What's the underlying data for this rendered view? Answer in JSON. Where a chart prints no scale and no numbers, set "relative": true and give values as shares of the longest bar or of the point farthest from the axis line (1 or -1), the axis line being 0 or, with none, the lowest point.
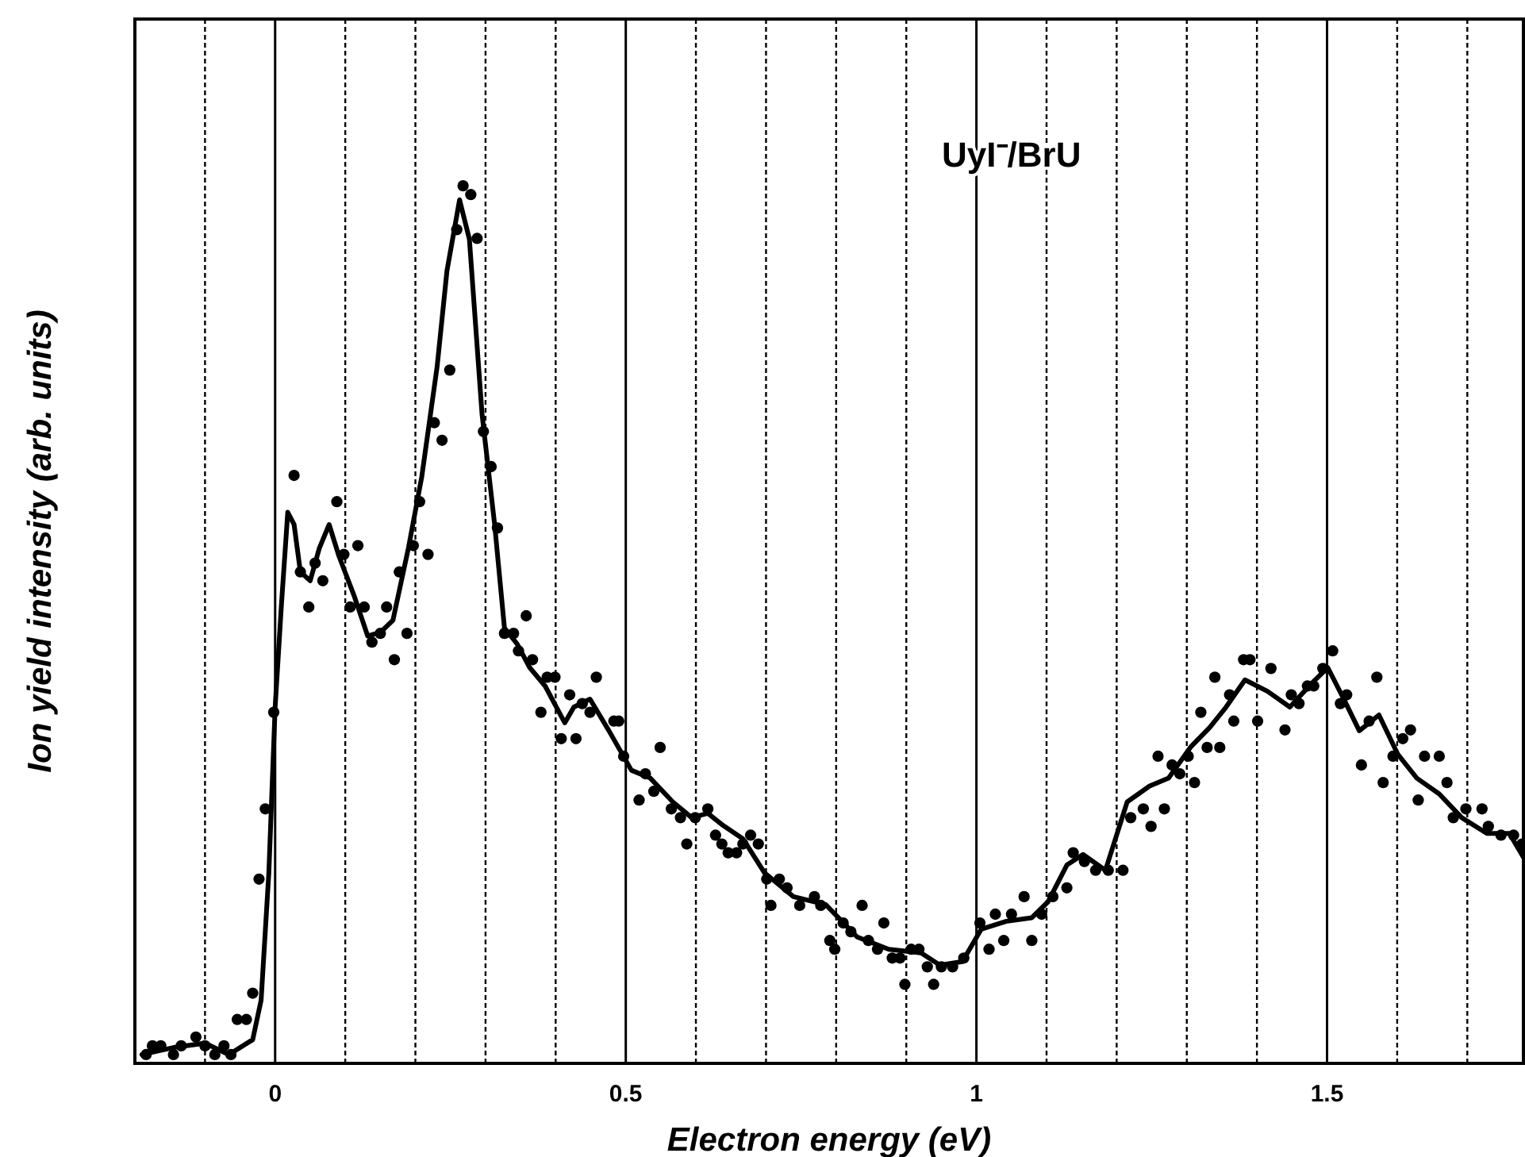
{
  "chart_data": {
    "type": "scatter",
    "title": "UyI⁻/BrU",
    "xlabel": "Electron energy (eV)",
    "ylabel": "Ion yield intensity (arb. units)",
    "relative": true,
    "xlim": [
      -0.2,
      1.78
    ],
    "xticks": [
      {
        "value": -0.1,
        "label": null
      },
      0,
      {
        "value": 0.1,
        "label": null
      },
      {
        "value": 0.2,
        "label": null
      },
      {
        "value": 0.3,
        "label": null
      },
      {
        "value": 0.4,
        "label": null
      },
      {
        "value": 0.5,
        "label": "0.5"
      },
      {
        "value": 0.6,
        "label": null
      },
      {
        "value": 0.7,
        "label": null
      },
      {
        "value": 0.8,
        "label": null
      },
      {
        "value": 0.9,
        "label": null
      },
      1,
      {
        "value": 1.1,
        "label": null
      },
      {
        "value": 1.2,
        "label": null
      },
      {
        "value": 1.3,
        "label": null
      },
      {
        "value": 1.4,
        "label": null
      },
      1.5,
      {
        "value": 1.6,
        "label": null
      },
      {
        "value": 1.7,
        "label": null
      }
    ],
    "grid": "x",
    "series": [
      {
        "color": "#000000",
        "marker": "circle",
        "x": [
          -0.184,
          -0.175,
          -0.163,
          -0.145,
          -0.134,
          -0.113,
          -0.1,
          -0.086,
          -0.073,
          -0.063,
          -0.054,
          -0.041,
          -0.032,
          -0.023,
          -0.014,
          -0.002,
          0.027,
          0.036,
          0.048,
          0.057,
          0.068,
          0.088,
          0.098,
          0.107,
          0.118,
          0.127,
          0.138,
          0.15,
          0.159,
          0.17,
          0.177,
          0.188,
          0.197,
          0.206,
          0.218,
          0.227,
          0.238,
          0.249,
          0.259,
          0.268,
          0.279,
          0.288,
          0.297,
          0.308,
          0.317,
          0.327,
          0.34,
          0.347,
          0.358,
          0.367,
          0.379,
          0.388,
          0.399,
          0.408,
          0.42,
          0.429,
          0.438,
          0.449,
          0.458,
          0.483,
          0.49,
          0.497,
          0.519,
          0.528,
          0.54,
          0.549,
          0.565,
          0.578,
          0.587,
          0.599,
          0.617,
          0.628,
          0.637,
          0.646,
          0.658,
          0.667,
          0.678,
          0.689,
          0.701,
          0.707,
          0.719,
          0.73,
          0.748,
          0.769,
          0.778,
          0.791,
          0.798,
          0.81,
          0.821,
          0.837,
          0.846,
          0.859,
          0.868,
          0.88,
          0.891,
          0.898,
          0.907,
          0.918,
          0.93,
          0.939,
          0.95,
          0.966,
          0.982,
          1.005,
          1.018,
          1.027,
          1.039,
          1.05,
          1.068,
          1.079,
          1.093,
          1.109,
          1.129,
          1.138,
          1.154,
          1.17,
          1.188,
          1.209,
          1.22,
          1.238,
          1.249,
          1.259,
          1.268,
          1.279,
          1.29,
          1.302,
          1.311,
          1.32,
          1.329,
          1.34,
          1.347,
          1.361,
          1.367,
          1.381,
          1.39,
          1.401,
          1.42,
          1.44,
          1.449,
          1.46,
          1.472,
          1.481,
          1.494,
          1.508,
          1.519,
          1.528,
          1.549,
          1.56,
          1.571,
          1.58,
          1.594,
          1.608,
          1.619,
          1.63,
          1.639,
          1.66,
          1.671,
          1.68,
          1.698,
          1.721,
          1.73,
          1.748,
          1.766,
          1.778
        ],
        "values": [
          0.01,
          0.02,
          0.02,
          0.01,
          0.02,
          0.03,
          0.02,
          0.01,
          0.02,
          0.01,
          0.05,
          0.05,
          0.08,
          0.21,
          0.29,
          0.4,
          0.67,
          0.56,
          0.52,
          0.57,
          0.55,
          0.64,
          0.58,
          0.52,
          0.59,
          0.52,
          0.48,
          0.49,
          0.52,
          0.46,
          0.56,
          0.49,
          0.59,
          0.64,
          0.58,
          0.73,
          0.71,
          0.79,
          0.95,
          1,
          0.99,
          0.94,
          0.72,
          0.68,
          0.61,
          0.49,
          0.49,
          0.47,
          0.51,
          0.46,
          0.4,
          0.44,
          0.44,
          0.37,
          0.42,
          0.37,
          0.41,
          0.4,
          0.44,
          0.39,
          0.39,
          0.35,
          0.3,
          0.33,
          0.31,
          0.36,
          0.29,
          0.28,
          0.25,
          0.28,
          0.29,
          0.26,
          0.25,
          0.24,
          0.24,
          0.25,
          0.26,
          0.25,
          0.21,
          0.18,
          0.21,
          0.2,
          0.18,
          0.19,
          0.18,
          0.14,
          0.13,
          0.16,
          0.15,
          0.18,
          0.14,
          0.13,
          0.16,
          0.12,
          0.12,
          0.09,
          0.13,
          0.13,
          0.11,
          0.09,
          0.11,
          0.11,
          0.12,
          0.16,
          0.13,
          0.17,
          0.14,
          0.17,
          0.19,
          0.14,
          0.17,
          0.19,
          0.2,
          0.24,
          0.23,
          0.22,
          0.22,
          0.22,
          0.28,
          0.29,
          0.27,
          0.35,
          0.29,
          0.34,
          0.33,
          0.35,
          0.32,
          0.4,
          0.36,
          0.44,
          0.36,
          0.42,
          0.39,
          0.46,
          0.46,
          0.39,
          0.45,
          0.38,
          0.42,
          0.41,
          0.43,
          0.43,
          0.45,
          0.47,
          0.41,
          0.42,
          0.34,
          0.39,
          0.44,
          0.32,
          0.35,
          0.37,
          0.38,
          0.3,
          0.35,
          0.35,
          0.32,
          0.28,
          0.29,
          0.29,
          0.27,
          0.26,
          0.26,
          0.25
        ]
      },
      {
        "type": "line",
        "color": "#000000",
        "line_style": "solid",
        "x": [
          -0.19,
          -0.145,
          -0.1,
          -0.066,
          -0.032,
          -0.02,
          -0.009,
          0,
          0.009,
          0.018,
          0.027,
          0.036,
          0.05,
          0.063,
          0.077,
          0.091,
          0.113,
          0.132,
          0.15,
          0.168,
          0.19,
          0.209,
          0.231,
          0.245,
          0.263,
          0.277,
          0.295,
          0.313,
          0.327,
          0.345,
          0.363,
          0.385,
          0.413,
          0.426,
          0.449,
          0.476,
          0.508,
          0.535,
          0.567,
          0.594,
          0.617,
          0.639,
          0.667,
          0.698,
          0.739,
          0.785,
          0.83,
          0.875,
          0.921,
          0.948,
          0.98,
          1.007,
          1.043,
          1.079,
          1.102,
          1.129,
          1.152,
          1.184,
          1.215,
          1.247,
          1.274,
          1.306,
          1.333,
          1.356,
          1.383,
          1.415,
          1.447,
          1.478,
          1.501,
          1.524,
          1.546,
          1.574,
          1.601,
          1.628,
          1.66,
          1.692,
          1.728,
          1.76,
          1.78
        ],
        "values": [
          0.01,
          0.018,
          0.023,
          0.01,
          0.027,
          0.072,
          0.217,
          0.406,
          0.523,
          0.628,
          0.614,
          0.56,
          0.55,
          0.587,
          0.614,
          0.578,
          0.532,
          0.487,
          0.491,
          0.505,
          0.587,
          0.668,
          0.794,
          0.903,
          0.984,
          0.939,
          0.74,
          0.614,
          0.496,
          0.478,
          0.451,
          0.43,
          0.388,
          0.406,
          0.415,
          0.379,
          0.334,
          0.325,
          0.298,
          0.28,
          0.285,
          0.271,
          0.256,
          0.217,
          0.19,
          0.181,
          0.144,
          0.13,
          0.126,
          0.112,
          0.116,
          0.153,
          0.162,
          0.166,
          0.184,
          0.226,
          0.238,
          0.22,
          0.298,
          0.316,
          0.325,
          0.361,
          0.383,
          0.406,
          0.437,
          0.424,
          0.406,
          0.433,
          0.451,
          0.415,
          0.379,
          0.397,
          0.352,
          0.325,
          0.307,
          0.28,
          0.262,
          0.262,
          0.235
        ]
      }
    ]
  }
}
